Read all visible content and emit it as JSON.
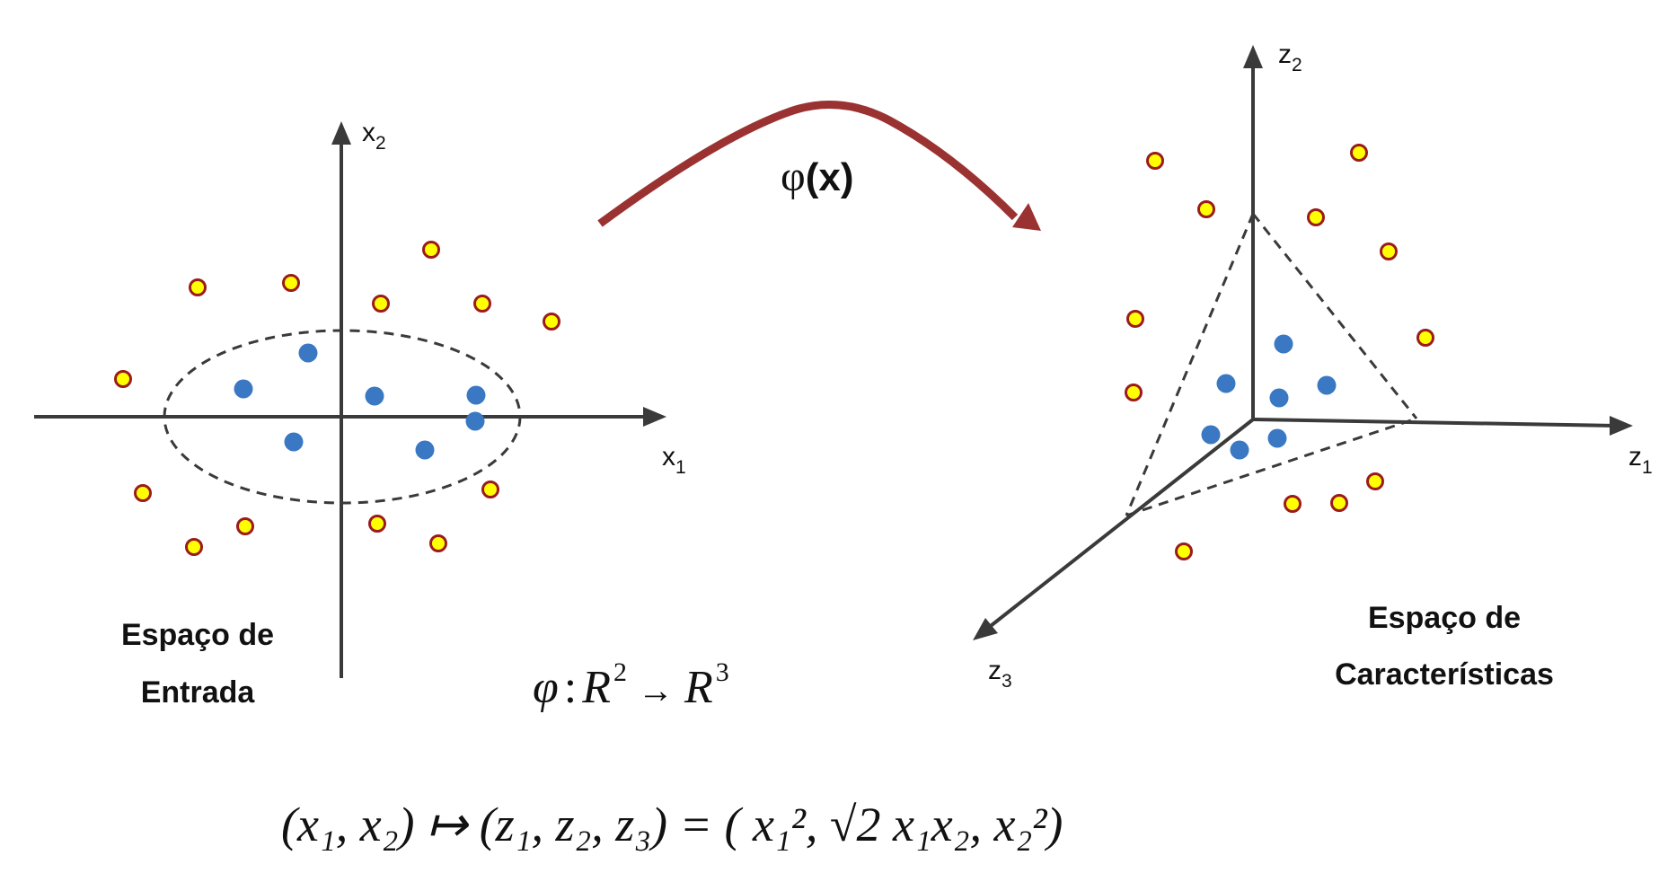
{
  "left_axes": {
    "x_label": "x",
    "x_sub": "1",
    "y_label": "x",
    "y_sub": "2"
  },
  "right_axes": {
    "z1_label": "z",
    "z1_sub": "1",
    "z2_label": "z",
    "z2_sub": "2",
    "z3_label": "z",
    "z3_sub": "3"
  },
  "mapping_arrow": {
    "phi": "φ",
    "open": "(",
    "x": "x",
    "close": ")"
  },
  "left_caption": {
    "line1": "Espaço de",
    "line2": "Entrada"
  },
  "right_caption": {
    "line1": "Espaço de",
    "line2": "Características"
  },
  "mapping_formula": {
    "phi": "φ",
    "colon": ":",
    "domain": "R",
    "domain_exp": "2",
    "arrow": "→",
    "codomain": "R",
    "codomain_exp": "3"
  },
  "feature_formula": {
    "lhs": "(x₁, x₂) ↦ (z₁, z₂, z₃) = ( x₁², √2 x₁x₂, x₂²)"
  },
  "colors": {
    "axis": "#3a3a3a",
    "class_a_fill": "#ffff00",
    "class_a_stroke": "#9b1b1b",
    "class_b_fill": "#3a78c4",
    "arrow": "#9b3232"
  }
}
